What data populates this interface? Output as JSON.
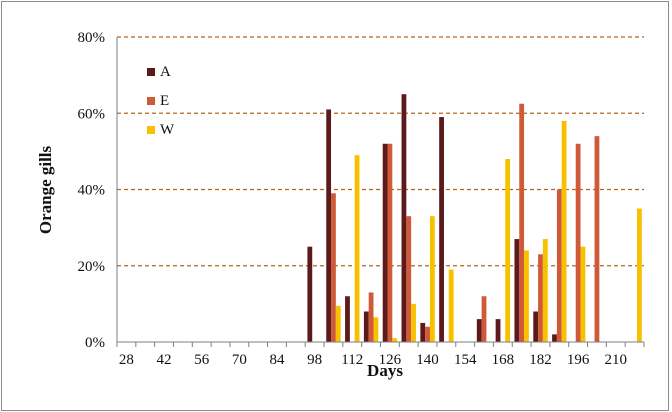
{
  "chart_data": {
    "type": "bar",
    "xlabel": "Days",
    "ylabel": "Orange gills",
    "ylim": [
      0,
      80
    ],
    "yticks": [
      "0%",
      "20%",
      "40%",
      "60%",
      "80%"
    ],
    "xticks": [
      "28",
      "42",
      "56",
      "70",
      "84",
      "98",
      "112",
      "126",
      "140",
      "154",
      "168",
      "182",
      "196",
      "210"
    ],
    "grid": "horizontal dashed",
    "legend": "top-left",
    "categories": [
      28,
      35,
      42,
      49,
      56,
      63,
      70,
      77,
      84,
      91,
      98,
      105,
      112,
      119,
      126,
      133,
      140,
      147,
      154,
      161,
      168,
      175,
      182,
      189,
      196,
      203,
      210,
      217
    ],
    "series": [
      {
        "name": "A",
        "color": "#5c1a1b",
        "values": [
          0,
          0,
          0,
          0,
          0,
          0,
          0,
          0,
          0,
          0,
          25,
          61,
          12,
          8,
          52,
          65,
          5,
          59,
          0,
          6,
          6,
          27,
          8,
          2,
          0,
          0,
          0,
          0
        ]
      },
      {
        "name": "E",
        "color": "#cf5a3a",
        "values": [
          0,
          0,
          0,
          0,
          0,
          0,
          0,
          0,
          0,
          0,
          0,
          39,
          0,
          13,
          52,
          33,
          4,
          0,
          0,
          12,
          0,
          62.5,
          23,
          40,
          52,
          54,
          0,
          0
        ]
      },
      {
        "name": "W",
        "color": "#f7c100",
        "values": [
          0,
          0,
          0,
          0,
          0,
          0,
          0,
          0,
          0,
          0,
          0,
          9.5,
          49,
          6.5,
          1,
          10,
          33,
          19,
          0,
          0,
          48,
          24,
          27,
          58,
          25,
          0,
          0,
          35
        ]
      }
    ]
  }
}
